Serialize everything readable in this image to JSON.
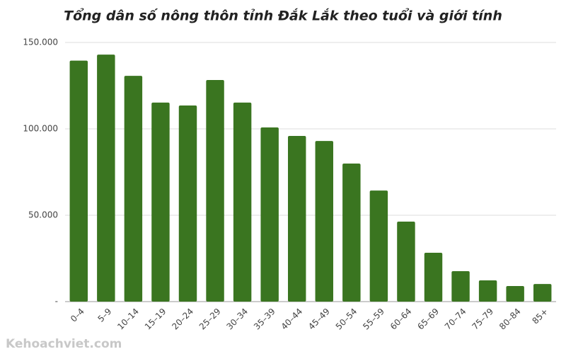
{
  "chart_data": {
    "type": "bar",
    "title": "Tổng dân số nông thôn tỉnh Đắk Lắk theo tuổi và giới tính",
    "categories": [
      "0–4",
      "5–9",
      "10–14",
      "15–19",
      "20–24",
      "25–29",
      "30–34",
      "35–39",
      "40–44",
      "45–49",
      "50–54",
      "55–59",
      "60–64",
      "65–69",
      "70–74",
      "75–79",
      "80–84",
      "85+"
    ],
    "values": [
      139500,
      143000,
      130700,
      115200,
      113500,
      128300,
      115200,
      100800,
      95900,
      93000,
      79900,
      64300,
      46300,
      28300,
      17600,
      12300,
      9000,
      10200
    ],
    "color": "#3a7520",
    "ylim": [
      0,
      150000
    ],
    "yticks": [
      {
        "value": 0,
        "label": "-"
      },
      {
        "value": 50000,
        "label": "50.000"
      },
      {
        "value": 100000,
        "label": "100.000"
      },
      {
        "value": 150000,
        "label": "150.000"
      }
    ],
    "grid": true,
    "watermark": "Kehoachviet.com"
  }
}
